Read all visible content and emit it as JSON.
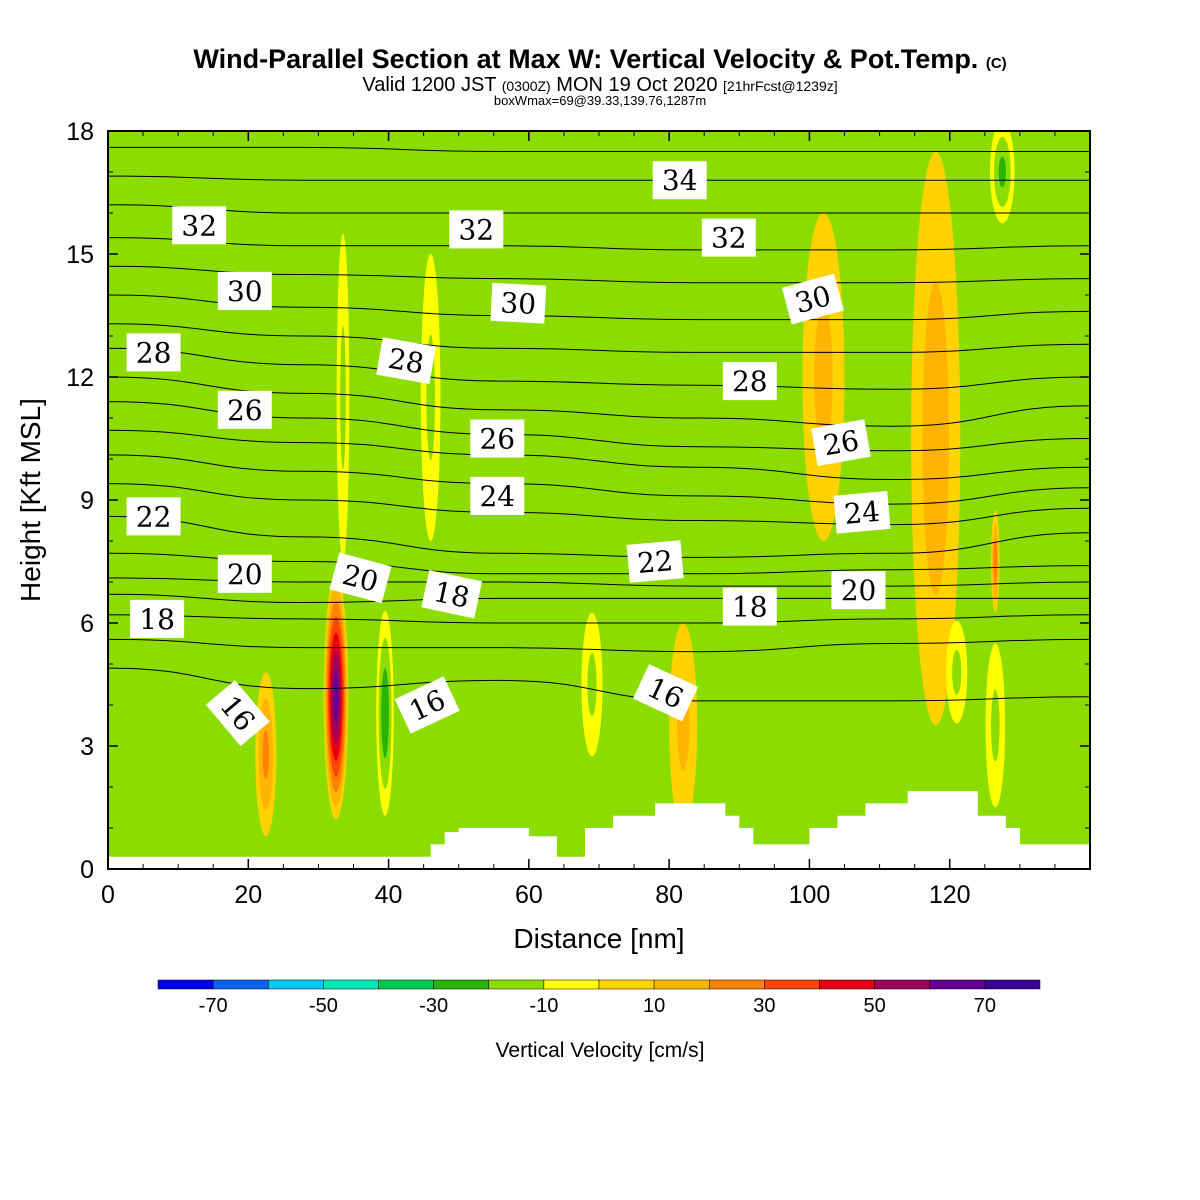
{
  "header": {
    "title": "Wind-Parallel Section at Max W: Vertical Velocity & Pot.Temp.",
    "title_mark": "(C)",
    "valid_prefix": "Valid 1200 JST",
    "valid_utc": "(0300Z)",
    "valid_date": "MON 19 Oct 2020",
    "forecast": "[21hrFcst@1239z]",
    "box": "boxWmax=69@39.33,139.76,1287m"
  },
  "chart_data": {
    "type": "heatmap",
    "xlabel": "Distance [nm]",
    "ylabel": "Height [Kft MSL]",
    "xlim": [
      0,
      140
    ],
    "ylim": [
      0,
      18
    ],
    "x_ticks": [
      0,
      20,
      40,
      60,
      80,
      100,
      120
    ],
    "y_ticks": [
      0,
      3,
      6,
      9,
      12,
      15,
      18
    ],
    "background_color": "#8cdc00",
    "colorbar": {
      "title": "Vertical Velocity [cm/s]",
      "levels": [
        -80,
        -70,
        -60,
        -50,
        -40,
        -30,
        -20,
        -10,
        0,
        10,
        20,
        30,
        40,
        50,
        60,
        70,
        80
      ],
      "tick_labels": [
        "-70",
        "-50",
        "-30",
        "-10",
        "10",
        "30",
        "50",
        "70"
      ],
      "tick_values": [
        -70,
        -50,
        -30,
        -10,
        10,
        30,
        50,
        70
      ],
      "colors": [
        "#0000f0",
        "#0064f0",
        "#00c8f0",
        "#00e6b4",
        "#00c850",
        "#28b400",
        "#8cdc00",
        "#ffff00",
        "#ffd200",
        "#ffb400",
        "#ff8200",
        "#ff4600",
        "#e60014",
        "#a0005a",
        "#640096",
        "#3c0096"
      ]
    },
    "velocity_features": [
      {
        "name": "updraft core",
        "x": 32.5,
        "y": 4.2,
        "w": 3.5,
        "h": 6.0,
        "w_cms": 69
      },
      {
        "name": "updraft",
        "x": 22.5,
        "y": 2.8,
        "w": 3.0,
        "h": 4.0,
        "w_cms": 25
      },
      {
        "name": "downdraft",
        "x": 39.5,
        "y": 3.8,
        "w": 2.5,
        "h": 5.0,
        "w_cms": -30
      },
      {
        "name": "downdraft",
        "x": 46.0,
        "y": 11.5,
        "w": 2.8,
        "h": 7.0,
        "w_cms": -15
      },
      {
        "name": "downdraft",
        "x": 33.5,
        "y": 11.5,
        "w": 1.8,
        "h": 8.0,
        "w_cms": -15
      },
      {
        "name": "updraft",
        "x": 118.0,
        "y": 10.5,
        "w": 7.0,
        "h": 14.0,
        "w_cms": 18
      },
      {
        "name": "updraft",
        "x": 102.0,
        "y": 12.0,
        "w": 6.0,
        "h": 8.0,
        "w_cms": 15
      },
      {
        "name": "updraft",
        "x": 126.5,
        "y": 7.5,
        "w": 1.2,
        "h": 2.5,
        "w_cms": 30
      },
      {
        "name": "downdraft",
        "x": 126.5,
        "y": 3.5,
        "w": 2.8,
        "h": 4.0,
        "w_cms": -15
      },
      {
        "name": "downdraft",
        "x": 121.0,
        "y": 4.8,
        "w": 3.0,
        "h": 2.5,
        "w_cms": -15
      },
      {
        "name": "downdraft",
        "x": 127.5,
        "y": 17.0,
        "w": 3.5,
        "h": 2.5,
        "w_cms": -25
      },
      {
        "name": "downdraft",
        "x": 69.0,
        "y": 4.5,
        "w": 3.0,
        "h": 3.5,
        "w_cms": -15
      },
      {
        "name": "updraft",
        "x": 82.0,
        "y": 3.5,
        "w": 4.0,
        "h": 5.0,
        "w_cms": 15
      }
    ],
    "isentropes": [
      {
        "theta": 16,
        "y": [
          4.9,
          4.4,
          4.6,
          4.1,
          4.1,
          4.2
        ]
      },
      {
        "theta": 17,
        "y": [
          5.6,
          5.4,
          5.4,
          5.3,
          5.5,
          5.6
        ]
      },
      {
        "theta": 18,
        "y": [
          6.2,
          6.1,
          6.0,
          6.0,
          6.1,
          6.2
        ]
      },
      {
        "theta": 19,
        "y": [
          6.7,
          6.5,
          6.6,
          6.6,
          6.6,
          6.6
        ]
      },
      {
        "theta": 20,
        "y": [
          7.1,
          7.0,
          7.0,
          6.9,
          6.9,
          7.0
        ]
      },
      {
        "theta": 21,
        "y": [
          7.7,
          7.5,
          7.2,
          7.2,
          7.3,
          7.4
        ]
      },
      {
        "theta": 22,
        "y": [
          8.6,
          8.1,
          7.7,
          7.6,
          7.7,
          8.2
        ]
      },
      {
        "theta": 23,
        "y": [
          9.4,
          9.0,
          8.7,
          8.5,
          8.4,
          8.8
        ]
      },
      {
        "theta": 24,
        "y": [
          10.1,
          9.7,
          9.4,
          9.1,
          8.9,
          9.3
        ]
      },
      {
        "theta": 25,
        "y": [
          10.7,
          10.4,
          10.1,
          9.8,
          9.5,
          9.8
        ]
      },
      {
        "theta": 26,
        "y": [
          11.4,
          11.0,
          10.6,
          10.3,
          10.2,
          10.5
        ]
      },
      {
        "theta": 27,
        "y": [
          12.0,
          11.6,
          11.2,
          11.0,
          10.8,
          11.3
        ]
      },
      {
        "theta": 28,
        "y": [
          12.7,
          12.3,
          11.9,
          11.8,
          11.7,
          12.0
        ]
      },
      {
        "theta": 29,
        "y": [
          13.3,
          13.0,
          12.7,
          12.6,
          12.6,
          12.8
        ]
      },
      {
        "theta": 30,
        "y": [
          14.0,
          13.7,
          13.5,
          13.4,
          13.4,
          13.6
        ]
      },
      {
        "theta": 31,
        "y": [
          14.7,
          14.5,
          14.4,
          14.3,
          14.3,
          14.4
        ]
      },
      {
        "theta": 32,
        "y": [
          15.4,
          15.2,
          15.2,
          15.1,
          15.1,
          15.2
        ]
      },
      {
        "theta": 33,
        "y": [
          16.2,
          16.0,
          16.0,
          16.0,
          16.0,
          16.0
        ]
      },
      {
        "theta": 34,
        "y": [
          16.9,
          16.8,
          16.8,
          16.8,
          16.8,
          16.8
        ]
      },
      {
        "theta": 35,
        "y": [
          17.6,
          17.6,
          17.5,
          17.5,
          17.5,
          17.5
        ]
      }
    ],
    "isentrope_x": [
      0,
      28,
      56,
      84,
      112,
      140
    ],
    "contour_labels": [
      {
        "text": "32",
        "x": 13,
        "y": 15.7,
        "rot": 0
      },
      {
        "text": "30",
        "x": 19.5,
        "y": 14.1,
        "rot": 0
      },
      {
        "text": "28",
        "x": 6.5,
        "y": 12.6,
        "rot": 0
      },
      {
        "text": "26",
        "x": 19.5,
        "y": 11.2,
        "rot": 0
      },
      {
        "text": "22",
        "x": 6.5,
        "y": 8.6,
        "rot": 0
      },
      {
        "text": "20",
        "x": 19.5,
        "y": 7.2,
        "rot": 0
      },
      {
        "text": "18",
        "x": 7,
        "y": 6.1,
        "rot": 0
      },
      {
        "text": "16",
        "x": 18.5,
        "y": 3.8,
        "rot": 50
      },
      {
        "text": "20",
        "x": 36,
        "y": 7.1,
        "rot": 15
      },
      {
        "text": "18",
        "x": 49,
        "y": 6.7,
        "rot": 12
      },
      {
        "text": "16",
        "x": 45.5,
        "y": 4.0,
        "rot": -25
      },
      {
        "text": "28",
        "x": 42.5,
        "y": 12.4,
        "rot": 10
      },
      {
        "text": "32",
        "x": 52.5,
        "y": 15.6,
        "rot": 0
      },
      {
        "text": "30",
        "x": 58.5,
        "y": 13.8,
        "rot": 3
      },
      {
        "text": "26",
        "x": 55.5,
        "y": 10.5,
        "rot": 0
      },
      {
        "text": "24",
        "x": 55.5,
        "y": 9.1,
        "rot": 0
      },
      {
        "text": "34",
        "x": 81.5,
        "y": 16.8,
        "rot": 0
      },
      {
        "text": "32",
        "x": 88.5,
        "y": 15.4,
        "rot": 0
      },
      {
        "text": "28",
        "x": 91.5,
        "y": 11.9,
        "rot": 0
      },
      {
        "text": "22",
        "x": 78,
        "y": 7.5,
        "rot": -5
      },
      {
        "text": "18",
        "x": 91.5,
        "y": 6.4,
        "rot": 0
      },
      {
        "text": "16",
        "x": 79.5,
        "y": 4.3,
        "rot": 25
      },
      {
        "text": "30",
        "x": 100.5,
        "y": 13.9,
        "rot": -15
      },
      {
        "text": "26",
        "x": 104.5,
        "y": 10.4,
        "rot": -10
      },
      {
        "text": "24",
        "x": 107.5,
        "y": 8.7,
        "rot": -5
      },
      {
        "text": "20",
        "x": 107,
        "y": 6.8,
        "rot": 0
      }
    ],
    "terrain": [
      [
        0,
        0.3
      ],
      [
        46,
        0.3
      ],
      [
        46,
        0.6
      ],
      [
        48,
        0.6
      ],
      [
        48,
        0.9
      ],
      [
        50,
        0.9
      ],
      [
        50,
        1.0
      ],
      [
        60,
        1.0
      ],
      [
        60,
        0.8
      ],
      [
        64,
        0.8
      ],
      [
        64,
        0.3
      ],
      [
        68,
        0.3
      ],
      [
        68,
        1.0
      ],
      [
        72,
        1.0
      ],
      [
        72,
        1.3
      ],
      [
        78,
        1.3
      ],
      [
        78,
        1.6
      ],
      [
        88,
        1.6
      ],
      [
        88,
        1.3
      ],
      [
        90,
        1.3
      ],
      [
        90,
        1.0
      ],
      [
        92,
        1.0
      ],
      [
        92,
        0.6
      ],
      [
        100,
        0.6
      ],
      [
        100,
        1.0
      ],
      [
        104,
        1.0
      ],
      [
        104,
        1.3
      ],
      [
        108,
        1.3
      ],
      [
        108,
        1.6
      ],
      [
        114,
        1.6
      ],
      [
        114,
        1.9
      ],
      [
        124,
        1.9
      ],
      [
        124,
        1.3
      ],
      [
        128,
        1.3
      ],
      [
        128,
        1.0
      ],
      [
        130,
        1.0
      ],
      [
        130,
        0.6
      ],
      [
        140,
        0.6
      ]
    ]
  }
}
